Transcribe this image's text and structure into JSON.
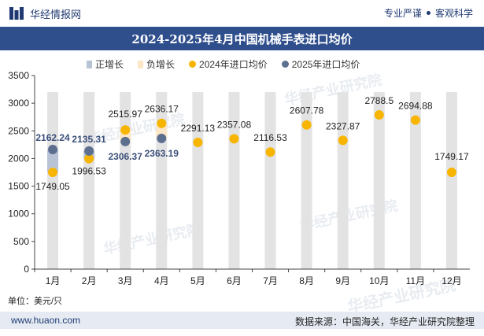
{
  "header": {
    "brand": "华经情报网",
    "tagline_left": "专业严谨",
    "tagline_right": "客观科学"
  },
  "title": "2024-2025年4月中国机械手表进口均价",
  "legend": {
    "pos": "正增长",
    "neg": "负增长",
    "s2024": "2024年进口均价",
    "s2025": "2025年进口均价"
  },
  "unit_label": "单位：美元/只",
  "footer": {
    "site": "www.huaon.com",
    "source": "数据来源：中国海关，华经产业研究院整理"
  },
  "watermark": "华经产业研究院",
  "colors": {
    "band": "#e3e3e3",
    "pos": "#b8c3d6",
    "neg": "#fbe7c6",
    "s2024": "#f7b500",
    "s2025": "#5d6f8f",
    "label2025": "#3c4f7a"
  },
  "chart_data": {
    "type": "line",
    "title": "2024-2025年4月中国机械手表进口均价",
    "categories": [
      "1月",
      "2月",
      "3月",
      "4月",
      "5月",
      "6月",
      "7月",
      "8月",
      "9月",
      "10月",
      "11月",
      "12月"
    ],
    "ylim": [
      0,
      3500
    ],
    "yticks": [
      0,
      500,
      1000,
      1500,
      2000,
      2500,
      3000,
      3500
    ],
    "ylabel": "单位：美元/只",
    "grid": false,
    "legend_position": "top",
    "series": [
      {
        "name": "2024年进口均价",
        "values": [
          1749.05,
          1996.53,
          2515.97,
          2636.17,
          2291.13,
          2357.08,
          2116.53,
          2607.78,
          2327.87,
          2788.5,
          2694.88,
          1749.17
        ],
        "labels": [
          "1749.05",
          "1996.53",
          "2515.97",
          "2636.17",
          "2291.13",
          "2357.08",
          "2116.53",
          "2607.78",
          "2327.87",
          "2788.5",
          "2694.88",
          "1749.17"
        ]
      },
      {
        "name": "2025年进口均价",
        "values": [
          2162.24,
          2135.31,
          2306.37,
          2363.19,
          null,
          null,
          null,
          null,
          null,
          null,
          null,
          null
        ],
        "labels": [
          "2162.24",
          "2135.31",
          "2306.37",
          "2363.19"
        ]
      }
    ]
  }
}
